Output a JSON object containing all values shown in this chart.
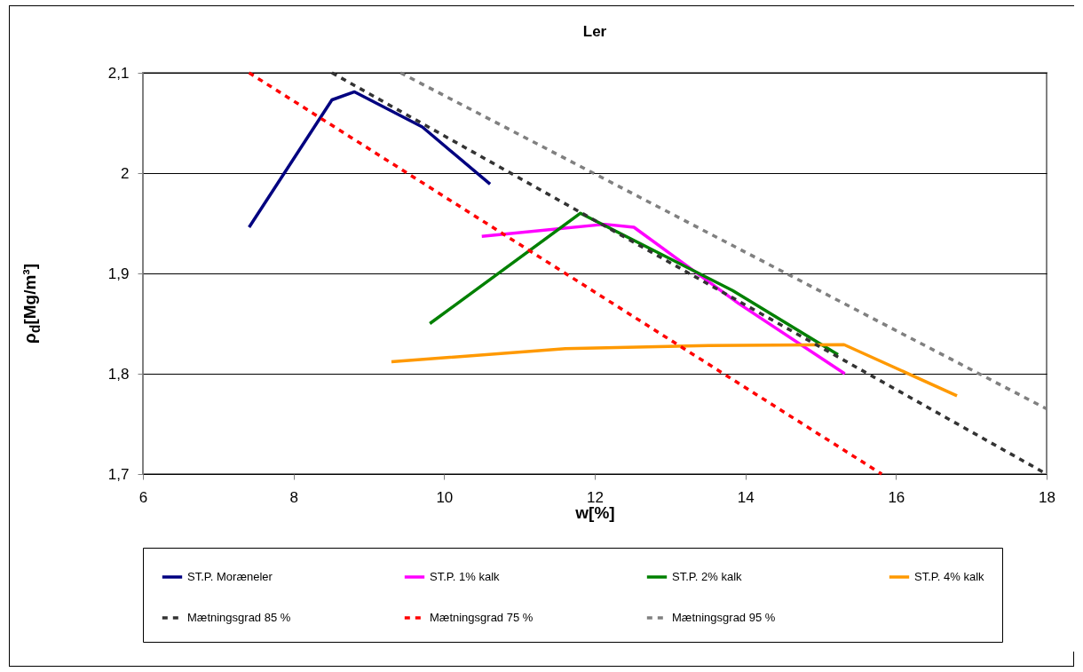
{
  "chart_data": {
    "type": "line",
    "title": "Ler",
    "xlabel": "w[%]",
    "ylabel": "ρ$_{d}$[Mg/m³]",
    "xlim": [
      6,
      18
    ],
    "xticks": [
      6,
      8,
      10,
      12,
      14,
      16,
      18
    ],
    "ylim": [
      1.7,
      2.1
    ],
    "yticks": [
      {
        "value": 1.7,
        "label": "1,7"
      },
      {
        "value": 1.8,
        "label": "1,8"
      },
      {
        "value": 1.9,
        "label": "1,9"
      },
      2,
      {
        "value": 2.1,
        "label": "2,1"
      }
    ],
    "grid": "y",
    "legend": "bottom",
    "marker": "none",
    "series": [
      {
        "name": "ST.P. Moræneler",
        "color": "#000080",
        "x": [
          7.41,
          8.51,
          8.81,
          9.71,
          10.61
        ],
        "values": [
          1.946,
          2.073,
          2.081,
          2.046,
          1.989
        ]
      },
      {
        "name": "ST.P. 1% kalk",
        "color": "#ff00ff",
        "x": [
          10.5,
          12.13,
          12.52,
          13.91,
          15.32
        ],
        "values": [
          1.937,
          1.949,
          1.946,
          1.87,
          1.8
        ]
      },
      {
        "name": "ST.P.  2% kalk",
        "color": "#008000",
        "x": [
          9.81,
          11.81,
          13.83,
          15.23
        ],
        "values": [
          1.85,
          1.96,
          1.883,
          1.819
        ]
      },
      {
        "name": "ST.P. 4% kalk",
        "color": "#ff9900",
        "x": [
          9.3,
          11.61,
          13.51,
          15.31,
          16.81
        ],
        "values": [
          1.812,
          1.825,
          1.828,
          1.829,
          1.778
        ]
      },
      {
        "name": "Mætningsgrad 85 %",
        "color": "#333333",
        "line_style": "dashed",
        "x": [
          8.51,
          18
        ],
        "values": [
          2.1,
          1.7
        ]
      },
      {
        "name": "Mætningsgrad 75 %",
        "color": "#ff0000",
        "line_style": "dashed",
        "x": [
          7.41,
          15.81
        ],
        "values": [
          2.1,
          1.7
        ]
      },
      {
        "name": "Mætningsgrad 95 %",
        "color": "#808080",
        "line_style": "dashed",
        "x": [
          9.42,
          18
        ],
        "values": [
          2.1,
          1.765
        ]
      }
    ]
  }
}
